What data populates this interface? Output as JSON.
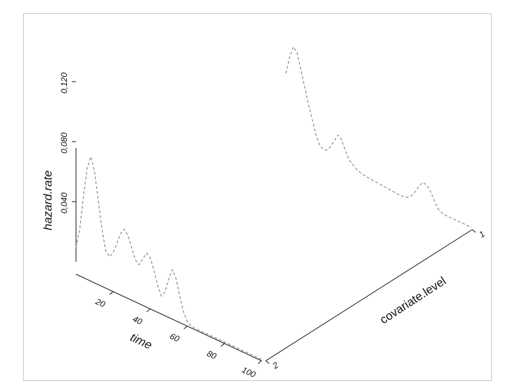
{
  "chart_data": {
    "type": "line",
    "title": "",
    "xlabel": "time",
    "ylabel": "covariate.level",
    "zlabel": "hazard.rate",
    "x_ticks": [
      "20",
      "40",
      "60",
      "80",
      "100"
    ],
    "y_ticks": [
      "2",
      "1"
    ],
    "z_ticks": [
      "0,040",
      "0,080",
      "0,120"
    ],
    "xlim": [
      0,
      100
    ],
    "zlim": [
      0,
      0.14
    ],
    "grid": false,
    "line_style": "dashed",
    "series": [
      {
        "covariate": "2",
        "x": [
          0,
          2,
          4,
          6,
          8,
          10,
          12,
          14,
          16,
          18,
          20,
          22,
          24,
          26,
          28,
          30,
          32,
          34,
          36,
          38,
          40,
          42,
          44,
          46,
          48,
          50,
          52,
          54,
          56,
          58,
          60,
          62,
          64,
          66,
          68,
          70,
          72,
          74,
          76,
          78,
          80,
          82,
          84,
          86,
          88,
          90,
          92,
          94,
          96,
          98,
          100
        ],
        "values": [
          0.018,
          0.031,
          0.054,
          0.074,
          0.083,
          0.074,
          0.056,
          0.038,
          0.025,
          0.022,
          0.026,
          0.033,
          0.041,
          0.045,
          0.042,
          0.035,
          0.028,
          0.026,
          0.031,
          0.036,
          0.034,
          0.027,
          0.018,
          0.012,
          0.016,
          0.026,
          0.033,
          0.028,
          0.017,
          0.008,
          0.003,
          0.0015,
          0.001,
          0.001,
          0.001,
          0.001,
          0.001,
          0.001,
          0.001,
          0.001,
          0.001,
          0.001,
          0.001,
          0.001,
          0.001,
          0.001,
          0.001,
          0.001,
          0.001,
          0.001,
          0.001
        ]
      },
      {
        "covariate": "1",
        "x": [
          0,
          2,
          4,
          6,
          8,
          10,
          12,
          14,
          16,
          18,
          20,
          22,
          24,
          26,
          28,
          30,
          32,
          34,
          36,
          38,
          40,
          42,
          44,
          46,
          48,
          50,
          52,
          54,
          56,
          58,
          60,
          62,
          64,
          66,
          68,
          70,
          72,
          74,
          76,
          78,
          80,
          82,
          84,
          86,
          88,
          90,
          92,
          94,
          96,
          98,
          100
        ],
        "values": [
          0.046,
          0.058,
          0.066,
          0.063,
          0.053,
          0.043,
          0.033,
          0.024,
          0.015,
          0.009,
          0.007,
          0.0075,
          0.011,
          0.016,
          0.021,
          0.019,
          0.013,
          0.008,
          0.006,
          0.004,
          0.003,
          0.0025,
          0.002,
          0.0018,
          0.0016,
          0.0014,
          0.0012,
          0.001,
          0.0008,
          0.0005,
          0.0003,
          0.0002,
          0.0005,
          0.0015,
          0.004,
          0.008,
          0.013,
          0.016,
          0.015,
          0.012,
          0.007,
          0.003,
          0.0015,
          0.001,
          0.001,
          0.001,
          0.001,
          0.001,
          0.001,
          0.001,
          0.001
        ]
      }
    ]
  }
}
